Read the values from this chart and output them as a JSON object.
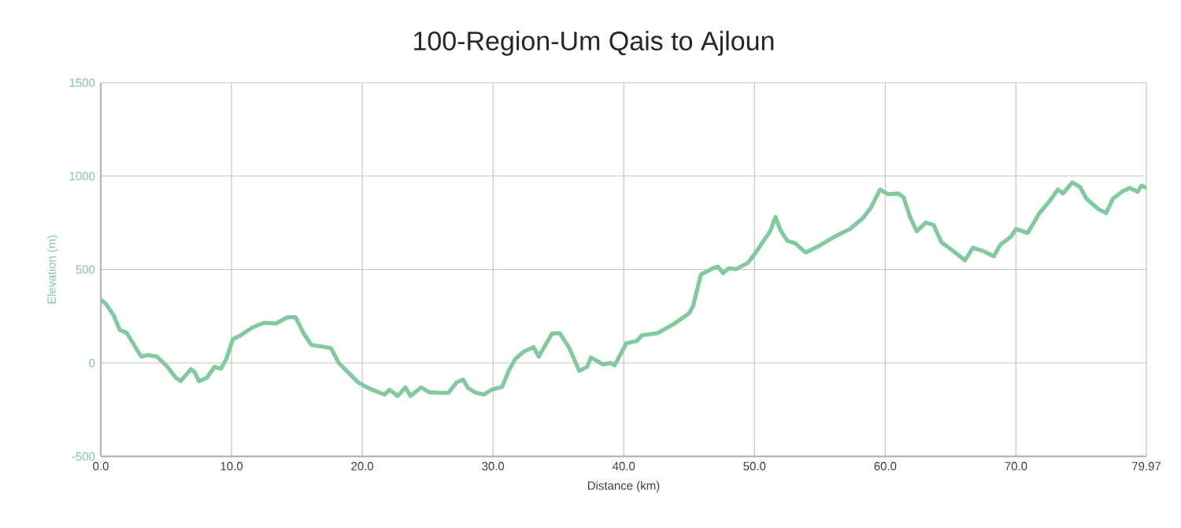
{
  "chart_data": {
    "type": "line",
    "title": "100-Region-Um Qais to Ajloun",
    "xlabel": "Distance (km)",
    "ylabel": "Elevation (m)",
    "xlim": [
      0,
      79.97
    ],
    "ylim": [
      -500,
      1500
    ],
    "xticks": [
      {
        "value": 0,
        "label": "0.0"
      },
      {
        "value": 10,
        "label": "10.0"
      },
      {
        "value": 20,
        "label": "20.0"
      },
      {
        "value": 30,
        "label": "30.0"
      },
      {
        "value": 40,
        "label": "40.0"
      },
      {
        "value": 50,
        "label": "50.0"
      },
      {
        "value": 60,
        "label": "60.0"
      },
      {
        "value": 70,
        "label": "70.0"
      },
      {
        "value": 79.97,
        "label": "79.97"
      }
    ],
    "yticks": [
      -500,
      0,
      500,
      1000,
      1500
    ],
    "grid": true,
    "marker": "none",
    "line_style": "solid",
    "series": [
      {
        "color": "#82c9a0",
        "x": [
          0,
          0.4,
          1.0,
          1.45,
          2.0,
          2.65,
          3.1,
          3.6,
          4.3,
          5.1,
          5.7,
          6.1,
          6.9,
          7.2,
          7.5,
          8.1,
          8.7,
          9.2,
          9.6,
          10.1,
          10.7,
          11.6,
          12.5,
          13.4,
          14.3,
          14.9,
          15.5,
          16.1,
          17.6,
          18.2,
          18.8,
          19.7,
          20.6,
          21.7,
          22.1,
          22.7,
          23.3,
          23.7,
          24.5,
          25.1,
          26.0,
          26.6,
          27.2,
          27.7,
          28.1,
          28.7,
          29.3,
          29.9,
          30.7,
          31.2,
          31.7,
          32.4,
          33.1,
          33.5,
          34.5,
          35.1,
          35.8,
          36.6,
          37.2,
          37.5,
          38.4,
          39.0,
          39.3,
          40.2,
          41.0,
          41.4,
          42.6,
          43.8,
          45.0,
          45.3,
          45.9,
          46.8,
          47.2,
          47.6,
          48.0,
          48.6,
          49.5,
          50.1,
          50.7,
          51.2,
          51.6,
          52.0,
          52.5,
          53.1,
          53.9,
          54.9,
          56.1,
          57.3,
          58.3,
          58.9,
          59.6,
          60.2,
          61.0,
          61.4,
          61.9,
          62.4,
          63.1,
          63.7,
          64.3,
          65.2,
          66.1,
          66.7,
          67.5,
          68.3,
          68.8,
          69.6,
          70.0,
          70.9,
          71.8,
          72.7,
          73.2,
          73.6,
          74.3,
          74.9,
          75.4,
          76.3,
          76.9,
          77.4,
          78.1,
          78.7,
          79.3,
          79.6,
          79.97
        ],
        "values": [
          338,
          316,
          253,
          177,
          160,
          84,
          34,
          42,
          34,
          -21,
          -76,
          -97,
          -34,
          -51,
          -97,
          -80,
          -21,
          -30,
          21,
          127,
          148,
          190,
          215,
          211,
          245,
          245,
          160,
          97,
          80,
          0,
          -42,
          -105,
          -139,
          -169,
          -143,
          -177,
          -131,
          -177,
          -131,
          -156,
          -160,
          -160,
          -105,
          -89,
          -135,
          -160,
          -169,
          -143,
          -127,
          -42,
          21,
          63,
          84,
          34,
          156,
          160,
          84,
          -42,
          -21,
          30,
          -8,
          0,
          -13,
          105,
          118,
          148,
          160,
          207,
          266,
          304,
          473,
          506,
          515,
          481,
          506,
          502,
          536,
          591,
          654,
          705,
          781,
          709,
          654,
          641,
          591,
          625,
          675,
          717,
          776,
          831,
          928,
          903,
          907,
          886,
          781,
          705,
          751,
          738,
          646,
          599,
          549,
          616,
          599,
          570,
          633,
          675,
          717,
          696,
          802,
          878,
          928,
          907,
          966,
          941,
          878,
          823,
          802,
          878,
          916,
          937,
          916,
          949,
          937
        ]
      }
    ]
  }
}
